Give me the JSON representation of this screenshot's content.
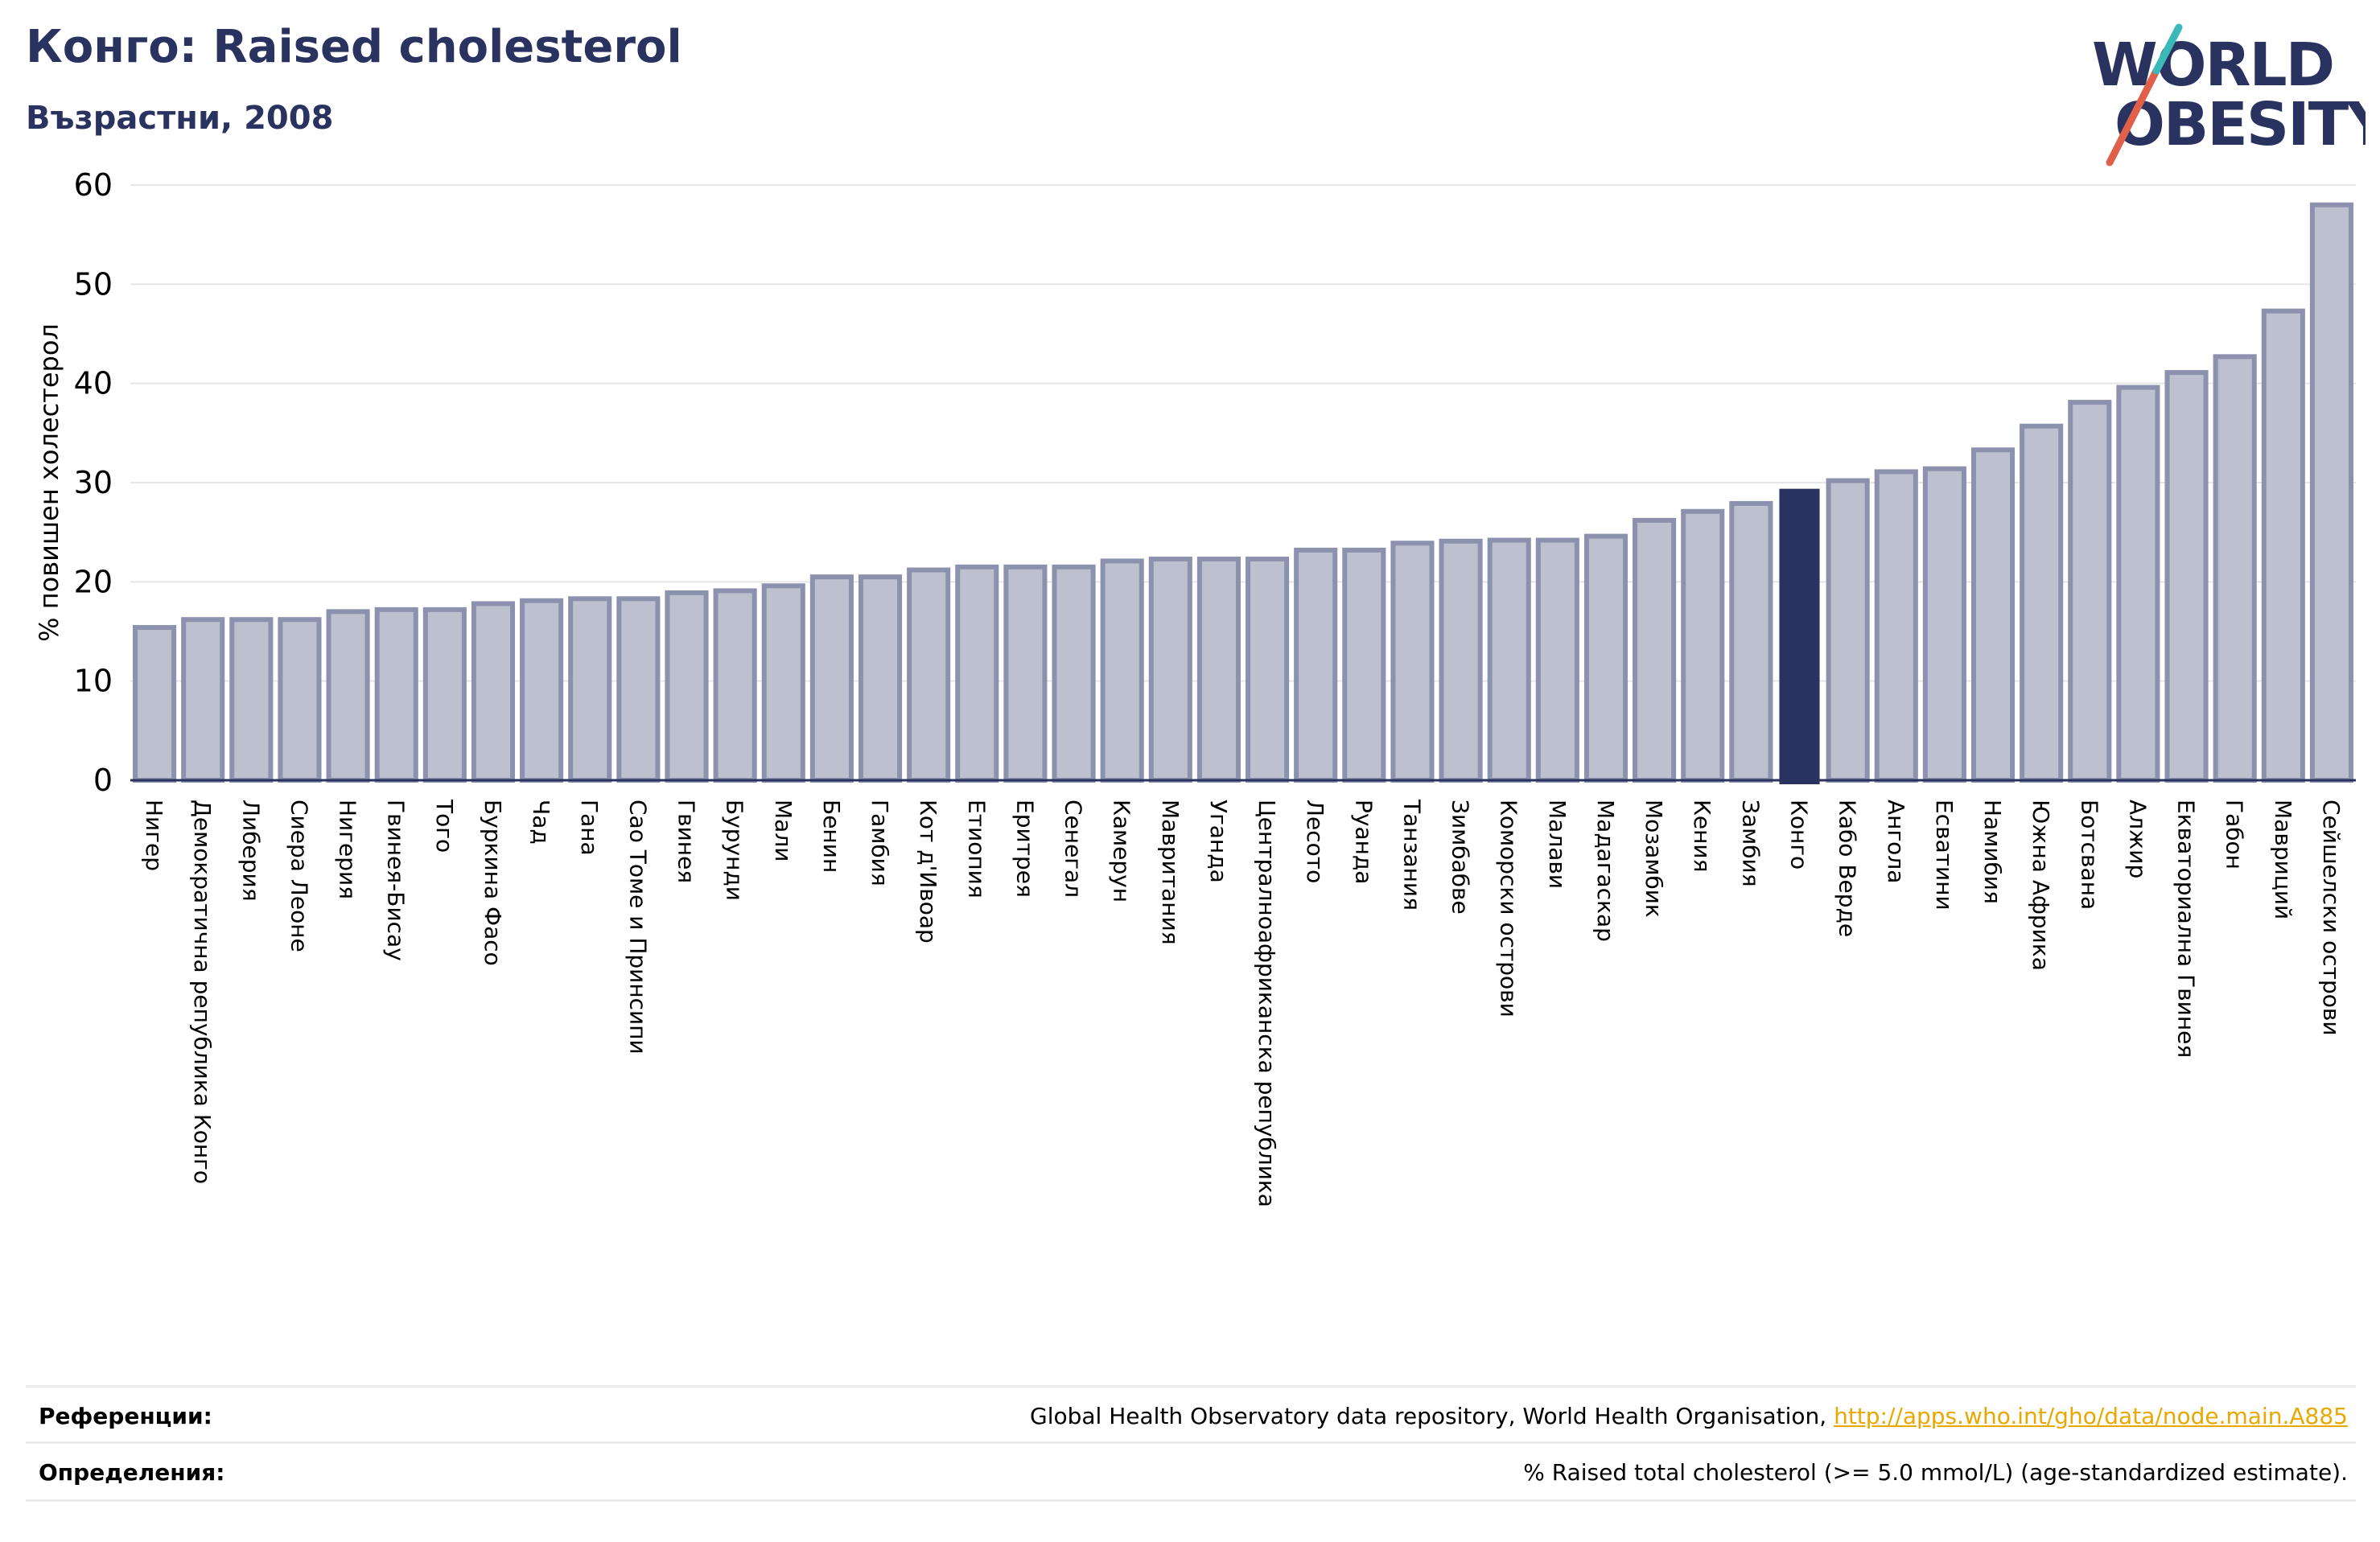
{
  "header": {
    "title": "Конго: Raised cholesterol",
    "subtitle": "Възрастни, 2008"
  },
  "logo": {
    "line1": "WORLD",
    "line2": "OBESITY",
    "colors": {
      "text": "#2a3360",
      "slash_red": "#e0604a",
      "slash_teal": "#3bb8b8"
    }
  },
  "chart_data": {
    "type": "bar",
    "ylabel": "% повишен холестерол",
    "xlabel": "",
    "ylim": [
      0,
      60
    ],
    "yticks": [
      0,
      10,
      20,
      30,
      40,
      50,
      60
    ],
    "grid": true,
    "highlight": "Конго",
    "colors": {
      "bar": "#bdc0ce",
      "bar_edge": "#8c91ad",
      "highlight": "#2a3360",
      "grid": "#e6e6e6"
    },
    "categories": [
      "Нигер",
      "Демократична република Конго",
      "Либерия",
      "Сиера Леоне",
      "Нигерия",
      "Гвинея-Бисау",
      "Того",
      "Буркина Фасо",
      "Чад",
      "Гана",
      "Сао Томе и Принсипи",
      "Гвинея",
      "Бурунди",
      "Мали",
      "Бенин",
      "Гамбия",
      "Кот д'Ивоар",
      "Етиопия",
      "Еритрея",
      "Сенегал",
      "Камерун",
      "Мавритания",
      "Уганда",
      "Централноафриканска република",
      "Лесото",
      "Руанда",
      "Танзания",
      "Зимбабве",
      "Коморски острови",
      "Малави",
      "Мадагаскар",
      "Мозамбик",
      "Кения",
      "Замбия",
      "Конго",
      "Кабо Верде",
      "Ангола",
      "Есватини",
      "Намибия",
      "Южна Африка",
      "Ботсвана",
      "Алжир",
      "Екваториална Гвинея",
      "Габон",
      "Мавриций",
      "Сейшелски острови"
    ],
    "values": [
      15.4,
      16.2,
      16.2,
      16.2,
      17.0,
      17.2,
      17.2,
      17.8,
      18.1,
      18.3,
      18.3,
      18.9,
      19.1,
      19.6,
      20.5,
      20.5,
      21.2,
      21.5,
      21.5,
      21.5,
      22.1,
      22.3,
      22.3,
      22.3,
      23.2,
      23.2,
      23.9,
      24.1,
      24.2,
      24.2,
      24.6,
      26.2,
      27.1,
      27.9,
      29.3,
      30.2,
      31.1,
      31.4,
      33.3,
      35.7,
      38.1,
      39.6,
      41.1,
      42.7,
      47.3,
      58.0
    ]
  },
  "footer": {
    "references_label": "Референции:",
    "references_text": "Global Health Observatory data repository, World Health Organisation, ",
    "references_link": "http://apps.who.int/gho/data/node.main.A885",
    "definitions_label": "Определения:",
    "definitions_text": "% Raised total cholesterol (>= 5.0 mmol/L) (age-standardized estimate)."
  }
}
